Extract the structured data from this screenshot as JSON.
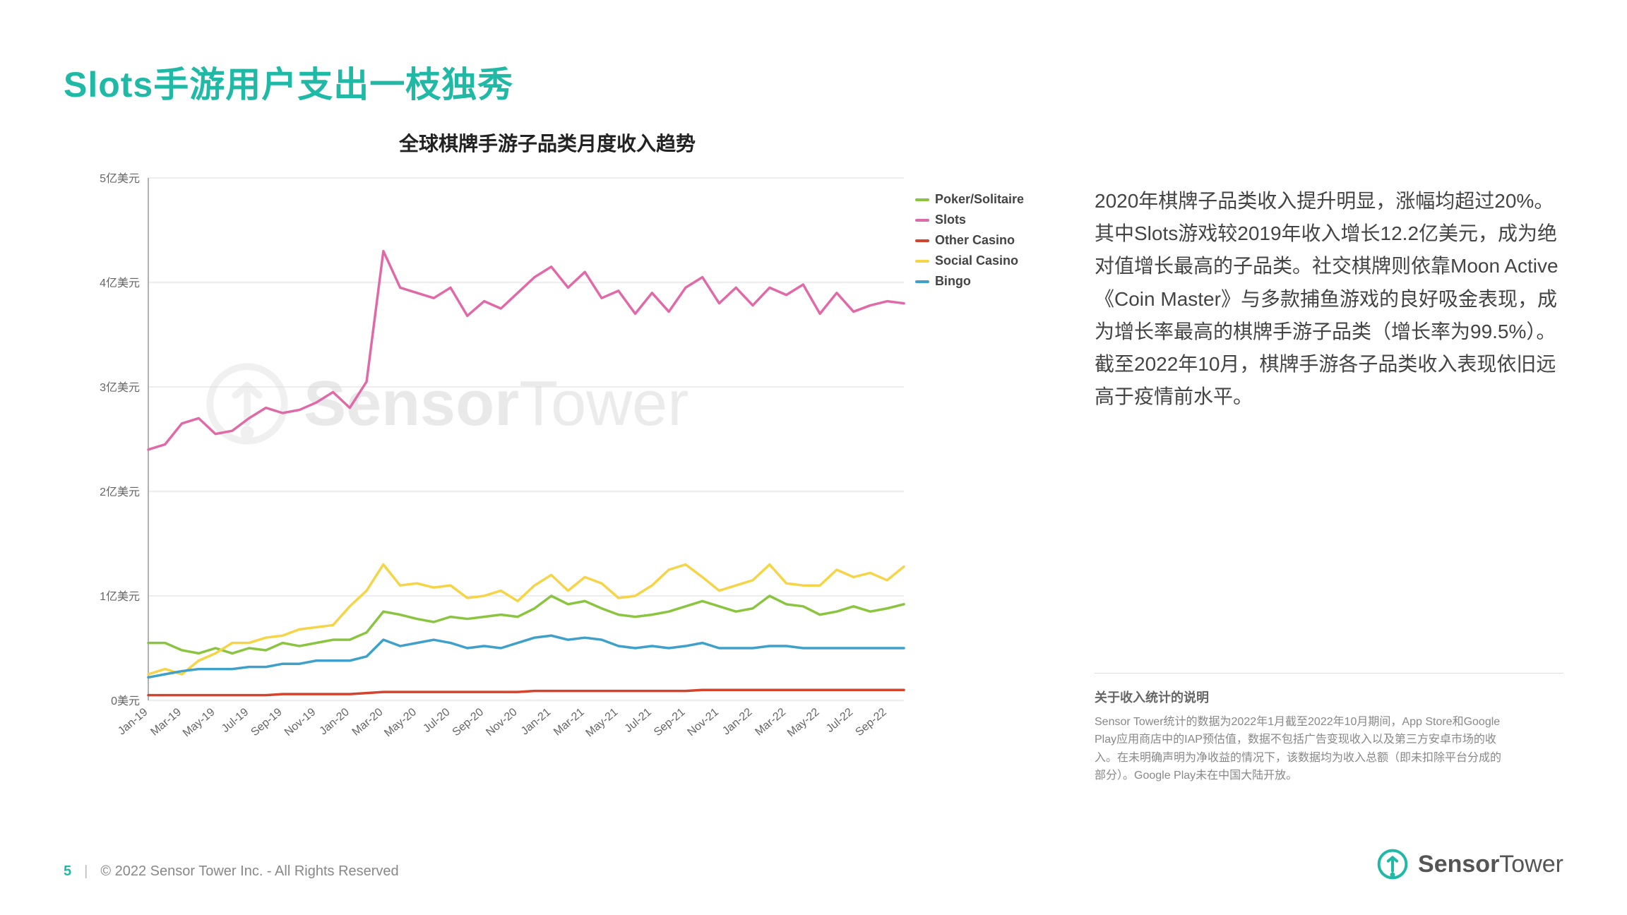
{
  "title": "Slots手游用户支出一枝独秀",
  "chart": {
    "type": "line",
    "title": "全球棋牌手游子品类月度收入趋势",
    "ylabel_suffix": "美元",
    "ylim": [
      0,
      5
    ],
    "ytick_step": 1,
    "yticks": [
      "0美元",
      "1亿美元",
      "2亿美元",
      "3亿美元",
      "4亿美元",
      "5亿美元"
    ],
    "xlabels": [
      "Jan-19",
      "Mar-19",
      "May-19",
      "Jul-19",
      "Sep-19",
      "Nov-19",
      "Jan-20",
      "Mar-20",
      "May-20",
      "Jul-20",
      "Sep-20",
      "Nov-20",
      "Jan-21",
      "Mar-21",
      "May-21",
      "Jul-21",
      "Sep-21",
      "Nov-21",
      "Jan-22",
      "Mar-22",
      "May-22",
      "Jul-22",
      "Sep-22"
    ],
    "n_points": 46,
    "grid_color": "#dcdcdc",
    "axis_color": "#999",
    "background_color": "#ffffff",
    "line_width": 3.5,
    "font_size_axis": 16,
    "series": [
      {
        "name": "Poker/Solitaire",
        "color": "#8bc540",
        "values": [
          0.55,
          0.55,
          0.48,
          0.45,
          0.5,
          0.45,
          0.5,
          0.48,
          0.55,
          0.52,
          0.55,
          0.58,
          0.58,
          0.65,
          0.85,
          0.82,
          0.78,
          0.75,
          0.8,
          0.78,
          0.8,
          0.82,
          0.8,
          0.88,
          1.0,
          0.92,
          0.95,
          0.88,
          0.82,
          0.8,
          0.82,
          0.85,
          0.9,
          0.95,
          0.9,
          0.85,
          0.88,
          1.0,
          0.92,
          0.9,
          0.82,
          0.85,
          0.9,
          0.85,
          0.88,
          0.92
        ]
      },
      {
        "name": "Slots",
        "color": "#e06aa7",
        "values": [
          2.4,
          2.45,
          2.65,
          2.7,
          2.55,
          2.58,
          2.7,
          2.8,
          2.75,
          2.78,
          2.85,
          2.95,
          2.8,
          3.05,
          4.3,
          3.95,
          3.9,
          3.85,
          3.95,
          3.68,
          3.82,
          3.75,
          3.9,
          4.05,
          4.15,
          3.95,
          4.1,
          3.85,
          3.92,
          3.7,
          3.9,
          3.72,
          3.95,
          4.05,
          3.8,
          3.95,
          3.78,
          3.95,
          3.88,
          3.98,
          3.7,
          3.9,
          3.72,
          3.78,
          3.82,
          3.8
        ]
      },
      {
        "name": "Other Casino",
        "color": "#d4432e",
        "values": [
          0.05,
          0.05,
          0.05,
          0.05,
          0.05,
          0.05,
          0.05,
          0.05,
          0.06,
          0.06,
          0.06,
          0.06,
          0.06,
          0.07,
          0.08,
          0.08,
          0.08,
          0.08,
          0.08,
          0.08,
          0.08,
          0.08,
          0.08,
          0.09,
          0.09,
          0.09,
          0.09,
          0.09,
          0.09,
          0.09,
          0.09,
          0.09,
          0.09,
          0.1,
          0.1,
          0.1,
          0.1,
          0.1,
          0.1,
          0.1,
          0.1,
          0.1,
          0.1,
          0.1,
          0.1,
          0.1
        ]
      },
      {
        "name": "Social Casino",
        "color": "#f5d547",
        "values": [
          0.25,
          0.3,
          0.25,
          0.38,
          0.45,
          0.55,
          0.55,
          0.6,
          0.62,
          0.68,
          0.7,
          0.72,
          0.9,
          1.05,
          1.3,
          1.1,
          1.12,
          1.08,
          1.1,
          0.98,
          1.0,
          1.05,
          0.95,
          1.1,
          1.2,
          1.05,
          1.18,
          1.12,
          0.98,
          1.0,
          1.1,
          1.25,
          1.3,
          1.18,
          1.05,
          1.1,
          1.15,
          1.3,
          1.12,
          1.1,
          1.1,
          1.25,
          1.18,
          1.22,
          1.15,
          1.28
        ]
      },
      {
        "name": "Bingo",
        "color": "#3fa0c9",
        "values": [
          0.22,
          0.25,
          0.28,
          0.3,
          0.3,
          0.3,
          0.32,
          0.32,
          0.35,
          0.35,
          0.38,
          0.38,
          0.38,
          0.42,
          0.58,
          0.52,
          0.55,
          0.58,
          0.55,
          0.5,
          0.52,
          0.5,
          0.55,
          0.6,
          0.62,
          0.58,
          0.6,
          0.58,
          0.52,
          0.5,
          0.52,
          0.5,
          0.52,
          0.55,
          0.5,
          0.5,
          0.5,
          0.52,
          0.52,
          0.5,
          0.5,
          0.5,
          0.5,
          0.5,
          0.5,
          0.5
        ]
      }
    ]
  },
  "body_text": "2020年棋牌子品类收入提升明显，涨幅均超过20%。其中Slots游戏较2019年收入增长12.2亿美元，成为绝对值增长最高的子品类。社交棋牌则依靠Moon Active《Coin Master》与多款捕鱼游戏的良好吸金表现，成为增长率最高的棋牌手游子品类（增长率为99.5%）。截至2022年10月，棋牌手游各子品类收入表现依旧远高于疫情前水平。",
  "note": {
    "title": "关于收入统计的说明",
    "body": "Sensor Tower统计的数据为2022年1月截至2022年10月期间，App Store和Google Play应用商店中的IAP预估值，数据不包括广告变现收入以及第三方安卓市场的收入。在未明确声明为净收益的情况下，该数据均为收入总额（即未扣除平台分成的部分）。Google Play未在中国大陆开放。"
  },
  "footer": {
    "page_number": "5",
    "copyright": "© 2022 Sensor Tower Inc. - All Rights Reserved"
  },
  "logo": {
    "brand_strong": "Sensor",
    "brand_light": "Tower",
    "color": "#1fb9a6"
  },
  "watermark": {
    "strong": "Sensor",
    "light": "Tower"
  }
}
